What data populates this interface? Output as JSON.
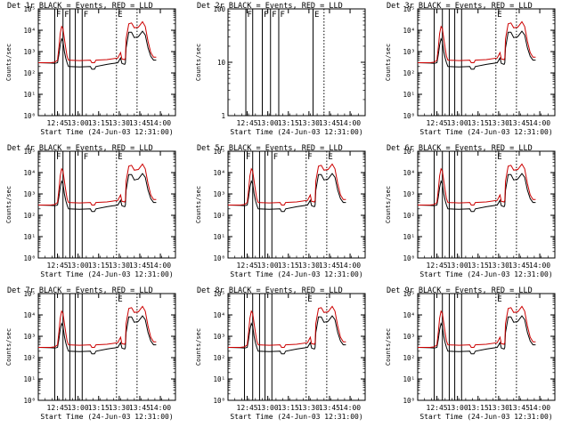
{
  "chart_data": [
    {
      "type": "line",
      "title": "Det 1r BLACK = Events, RED = LLD",
      "yscale": "log",
      "ylim": [
        1,
        100000
      ],
      "xlabel": "Start Time (24-Jun-03 12:31:00)",
      "ylabel": "Counts/sec",
      "series": [
        {
          "color": "#000000"
        },
        {
          "color": "#cc0000"
        }
      ]
    },
    {
      "type": "line",
      "title": "Det 2r BLACK = Events, RED = LLD",
      "yscale": "log",
      "ylim": [
        1,
        100
      ],
      "xlabel": "Start Time (24-Jun-03 12:31:00)",
      "ylabel": "Counts/sec",
      "series": []
    },
    {
      "type": "line",
      "title": "Det 3r BLACK = Events, RED = LLD",
      "yscale": "log",
      "ylim": [
        1,
        100000
      ],
      "xlabel": "Start Time (24-Jun-03 12:31:00)",
      "ylabel": "Counts/sec",
      "series": [
        {
          "color": "#000000"
        },
        {
          "color": "#cc0000"
        }
      ]
    },
    {
      "type": "line",
      "title": "Det 4r BLACK = Events, RED = LLD",
      "yscale": "log",
      "ylim": [
        1,
        100000
      ],
      "xlabel": "Start Time (24-Jun-03 12:31:00)",
      "ylabel": "Counts/sec",
      "series": [
        {
          "color": "#000000"
        },
        {
          "color": "#cc0000"
        }
      ]
    },
    {
      "type": "line",
      "title": "Det 5r BLACK = Events, RED = LLD",
      "yscale": "log",
      "ylim": [
        1,
        100000
      ],
      "xlabel": "Start Time (24-Jun-03 12:31:00)",
      "ylabel": "Counts/sec",
      "series": [
        {
          "color": "#000000"
        },
        {
          "color": "#cc0000"
        }
      ]
    },
    {
      "type": "line",
      "title": "Det 6r BLACK = Events, RED = LLD",
      "yscale": "log",
      "ylim": [
        1,
        100000
      ],
      "xlabel": "Start Time (24-Jun-03 12:31:00)",
      "ylabel": "Counts/sec",
      "series": [
        {
          "color": "#000000"
        },
        {
          "color": "#cc0000"
        }
      ]
    },
    {
      "type": "line",
      "title": "Det 7r BLACK = Events, RED = LLD",
      "yscale": "log",
      "ylim": [
        1,
        100000
      ],
      "xlabel": "Start Time (24-Jun-03 12:31:00)",
      "ylabel": "Counts/sec",
      "series": [
        {
          "color": "#000000"
        },
        {
          "color": "#cc0000"
        }
      ]
    },
    {
      "type": "line",
      "title": "Det 8r BLACK = Events, RED = LLD",
      "yscale": "log",
      "ylim": [
        1,
        100000
      ],
      "xlabel": "Start Time (24-Jun-03 12:31:00)",
      "ylabel": "Counts/sec",
      "series": [
        {
          "color": "#000000"
        },
        {
          "color": "#cc0000"
        }
      ]
    },
    {
      "type": "line",
      "title": "Det 9r BLACK = Events, RED = LLD",
      "yscale": "log",
      "ylim": [
        1,
        100000
      ],
      "xlabel": "Start Time (24-Jun-03 12:31:00)",
      "ylabel": "Counts/sec",
      "series": [
        {
          "color": "#000000"
        },
        {
          "color": "#cc0000"
        }
      ]
    }
  ],
  "shared": {
    "x_tick_labels": [
      "12:45",
      "13:00",
      "13:15",
      "13:30",
      "13:45",
      "14:00"
    ],
    "x_ticks_min": [
      14,
      29,
      44,
      59,
      74,
      89
    ],
    "xlim_min": [
      0,
      100
    ],
    "y_tick_labels_log5": [
      "10⁰",
      "10¹",
      "10²",
      "10³",
      "10⁴",
      "10⁵"
    ],
    "y_tick_labels_log2": [
      "1",
      "10",
      "100"
    ],
    "flag_letter_F": "F",
    "flag_letter_E": "E",
    "events_curve": [
      [
        0,
        300
      ],
      [
        9,
        290
      ],
      [
        12,
        280
      ],
      [
        14,
        300
      ],
      [
        15,
        700
      ],
      [
        16,
        2000
      ],
      [
        17,
        4000
      ],
      [
        18,
        3000
      ],
      [
        19,
        1000
      ],
      [
        20,
        500
      ],
      [
        21,
        300
      ],
      [
        22,
        200
      ],
      [
        30,
        190
      ],
      [
        38,
        200
      ],
      [
        39,
        150
      ],
      [
        41,
        150
      ],
      [
        42,
        200
      ],
      [
        50,
        250
      ],
      [
        58,
        300
      ],
      [
        60,
        500
      ],
      [
        61,
        280
      ],
      [
        63,
        250
      ],
      [
        63.5,
        300
      ],
      [
        64,
        1500
      ],
      [
        66,
        8000
      ],
      [
        68,
        8000
      ],
      [
        70,
        4500
      ],
      [
        73,
        5000
      ],
      [
        76,
        9000
      ],
      [
        78,
        6000
      ],
      [
        80,
        1500
      ],
      [
        82,
        600
      ],
      [
        84,
        400
      ],
      [
        86,
        400
      ]
    ],
    "lld_curve": [
      [
        0,
        300
      ],
      [
        9,
        300
      ],
      [
        12,
        320
      ],
      [
        14,
        400
      ],
      [
        15,
        1500
      ],
      [
        16,
        7000
      ],
      [
        17,
        15000
      ],
      [
        18,
        12000
      ],
      [
        19,
        4000
      ],
      [
        20,
        1500
      ],
      [
        21,
        600
      ],
      [
        22,
        400
      ],
      [
        30,
        380
      ],
      [
        38,
        400
      ],
      [
        39,
        300
      ],
      [
        41,
        300
      ],
      [
        42,
        400
      ],
      [
        50,
        420
      ],
      [
        58,
        500
      ],
      [
        60,
        900
      ],
      [
        61,
        450
      ],
      [
        63,
        420
      ],
      [
        63.5,
        500
      ],
      [
        64,
        4000
      ],
      [
        66,
        20000
      ],
      [
        68,
        22000
      ],
      [
        70,
        13000
      ],
      [
        73,
        14000
      ],
      [
        76,
        25000
      ],
      [
        78,
        15000
      ],
      [
        80,
        3000
      ],
      [
        82,
        900
      ],
      [
        84,
        550
      ],
      [
        86,
        550
      ]
    ]
  },
  "flags": [
    {
      "solid_min": [
        12,
        18,
        23,
        27,
        32
      ],
      "dotted_min": [
        57,
        72
      ],
      "F_at": [
        0,
        1,
        4
      ],
      "E_at": [
        5
      ]
    },
    {
      "solid_min": [
        13,
        18,
        25,
        31,
        37,
        62
      ],
      "dotted_min": [
        70
      ],
      "F_at": [
        0,
        2,
        3,
        4
      ],
      "E_at": [
        5
      ]
    },
    {
      "solid_min": [
        12,
        18,
        23,
        27,
        32
      ],
      "dotted_min": [
        57,
        72
      ],
      "F_at": [],
      "E_at": [
        5
      ]
    },
    {
      "solid_min": [
        12,
        18,
        23,
        27,
        32
      ],
      "dotted_min": [
        57
      ],
      "F_at": [
        0,
        4
      ],
      "E_at": [
        5
      ]
    },
    {
      "solid_min": [
        12,
        18,
        23,
        27,
        32
      ],
      "dotted_min": [
        57,
        72
      ],
      "F_at": [
        0,
        4,
        5
      ],
      "E_at": [
        6
      ]
    },
    {
      "solid_min": [
        12,
        18,
        23,
        27,
        32
      ],
      "dotted_min": [
        57,
        72
      ],
      "F_at": [],
      "E_at": [
        5
      ]
    },
    {
      "solid_min": [
        12,
        18,
        23,
        27,
        32
      ],
      "dotted_min": [
        57,
        72
      ],
      "F_at": [],
      "E_at": [
        5
      ]
    },
    {
      "solid_min": [
        12,
        18,
        23,
        27,
        32
      ],
      "dotted_min": [
        57,
        72
      ],
      "F_at": [],
      "E_at": [
        5
      ]
    },
    {
      "solid_min": [
        12,
        18,
        23,
        27,
        32
      ],
      "dotted_min": [
        57,
        72
      ],
      "F_at": [],
      "E_at": [
        5
      ]
    }
  ]
}
